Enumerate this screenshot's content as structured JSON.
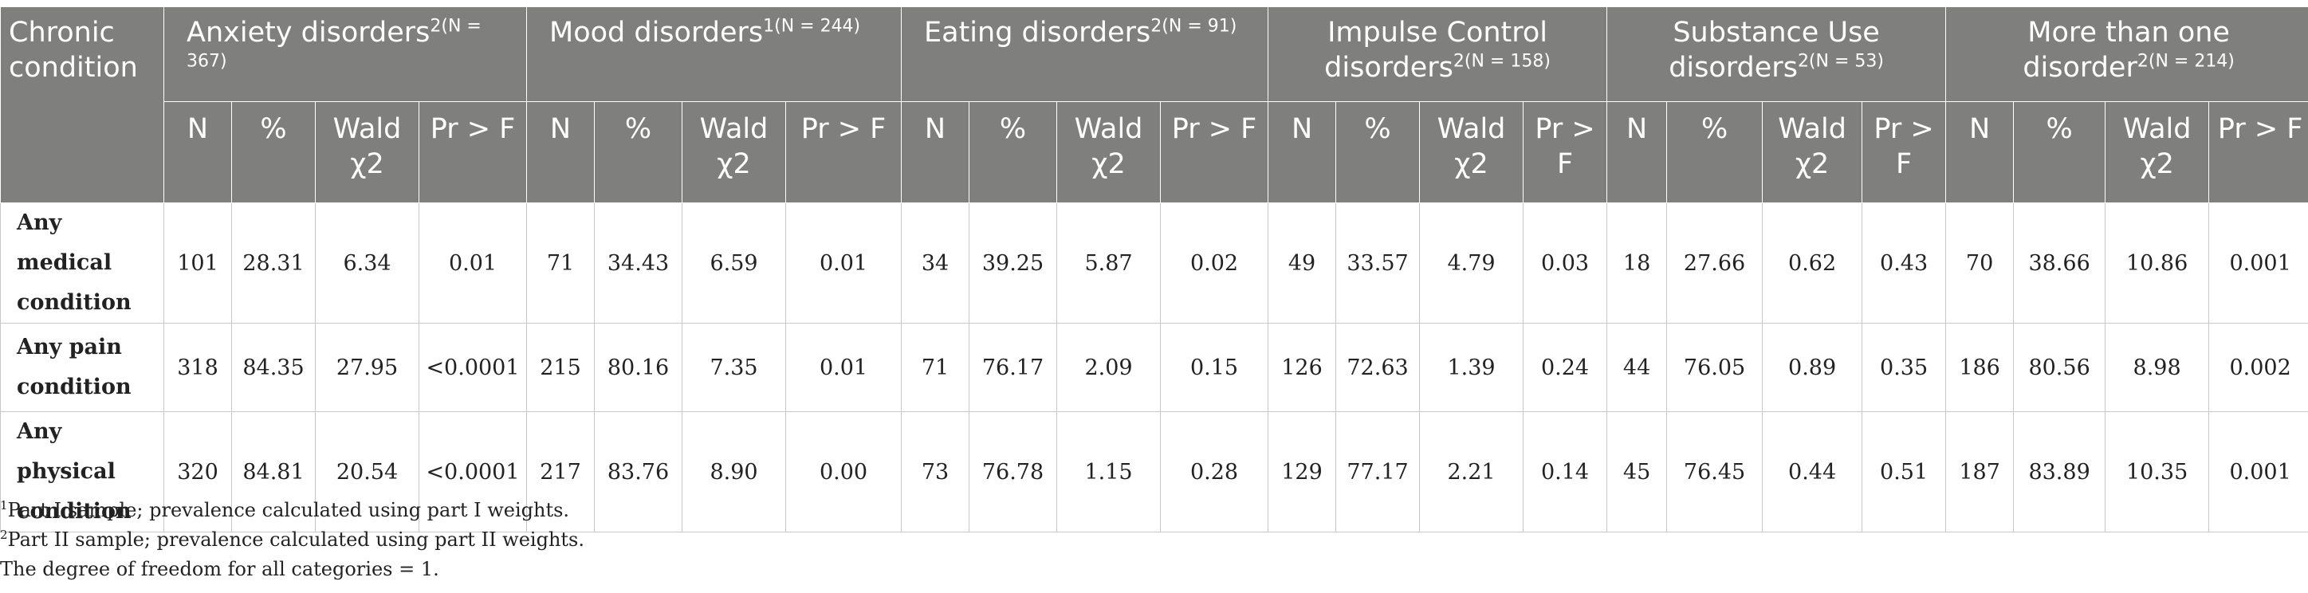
{
  "header": {
    "corner": "Chronic condition",
    "groups": [
      {
        "label": "Anxiety disorders",
        "sup": "2(N = 367)"
      },
      {
        "label": "Mood disorders",
        "sup": "1(N = 244)"
      },
      {
        "label": "Eating disorders",
        "sup": "2(N = 91)"
      },
      {
        "label": "Impulse Control disorders",
        "sup": "2(N = 158)"
      },
      {
        "label": "Substance Use disorders",
        "sup": "2(N = 53)"
      },
      {
        "label": "More than one disorder",
        "sup": "2(N = 214)"
      }
    ],
    "subcols": [
      "N",
      "%",
      "Wald χ2",
      "Pr > F"
    ]
  },
  "rows": [
    {
      "label": "Any medical condition",
      "cells": [
        "101",
        "28.31",
        "6.34",
        "0.01",
        "71",
        "34.43",
        "6.59",
        "0.01",
        "34",
        "39.25",
        "5.87",
        "0.02",
        "49",
        "33.57",
        "4.79",
        "0.03",
        "18",
        "27.66",
        "0.62",
        "0.43",
        "70",
        "38.66",
        "10.86",
        "0.001"
      ]
    },
    {
      "label": "Any pain condition",
      "cells": [
        "318",
        "84.35",
        "27.95",
        "<0.0001",
        "215",
        "80.16",
        "7.35",
        "0.01",
        "71",
        "76.17",
        "2.09",
        "0.15",
        "126",
        "72.63",
        "1.39",
        "0.24",
        "44",
        "76.05",
        "0.89",
        "0.35",
        "186",
        "80.56",
        "8.98",
        "0.002"
      ]
    },
    {
      "label": "Any physical condition",
      "cells": [
        "320",
        "84.81",
        "20.54",
        "<0.0001",
        "217",
        "83.76",
        "8.90",
        "0.00",
        "73",
        "76.78",
        "1.15",
        "0.28",
        "129",
        "77.17",
        "2.21",
        "0.14",
        "45",
        "76.45",
        "0.44",
        "0.51",
        "187",
        "83.89",
        "10.35",
        "0.001"
      ]
    }
  ],
  "notes": [
    {
      "sup": "1",
      "text": "Part I sample; prevalence calculated using part I weights."
    },
    {
      "sup": "2",
      "text": "Part II sample; prevalence calculated using part II weights."
    },
    {
      "sup": "",
      "text": "The degree of freedom for all categories = 1."
    }
  ]
}
